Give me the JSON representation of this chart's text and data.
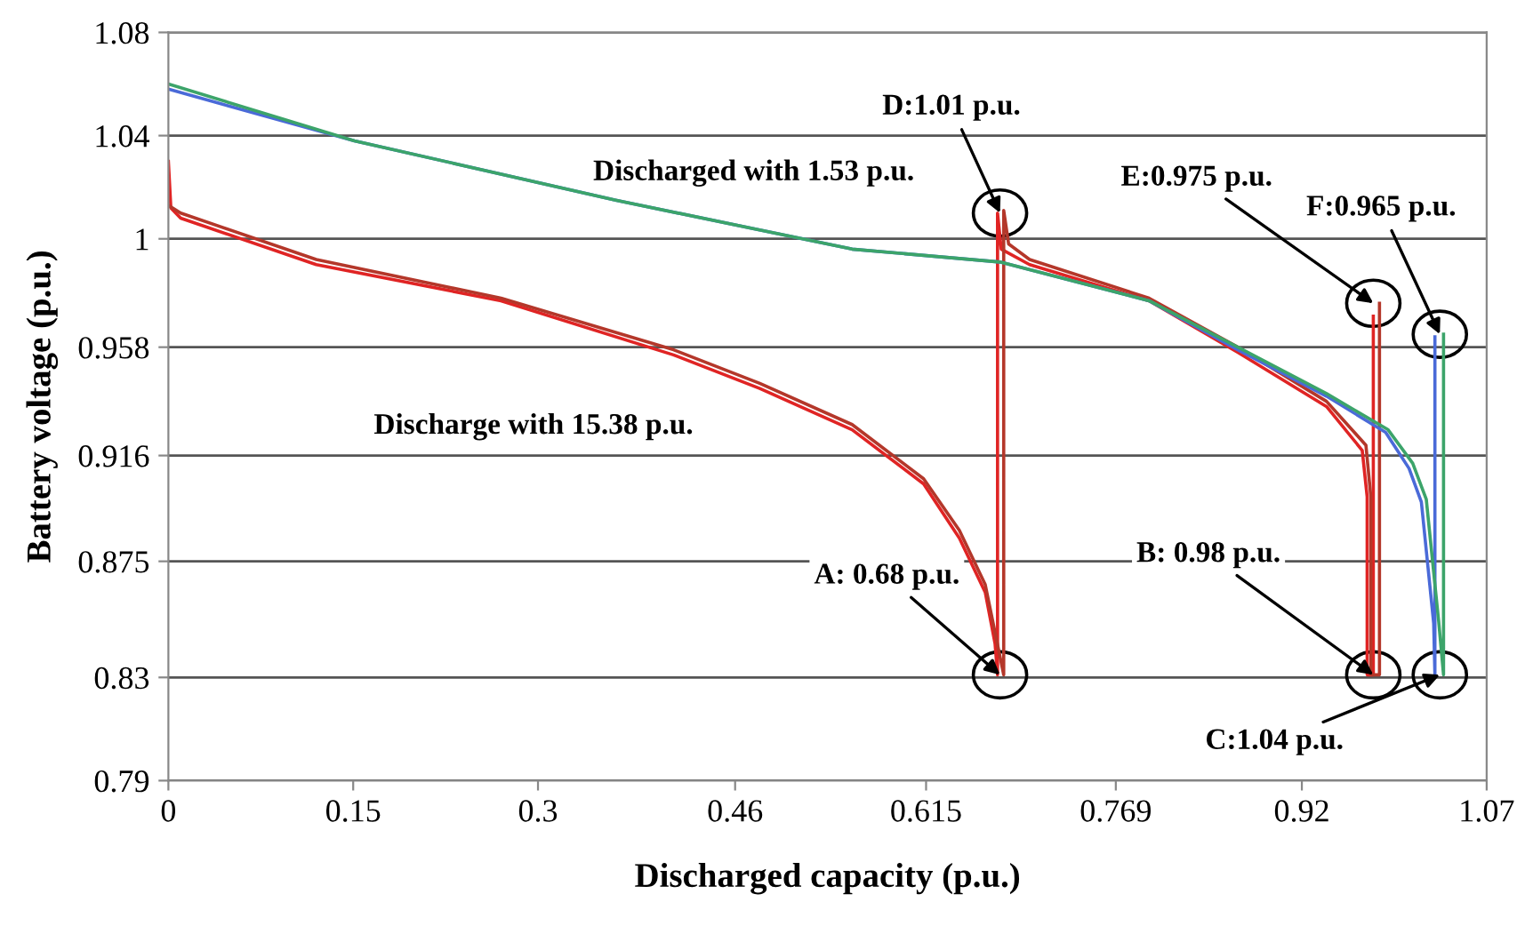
{
  "chart_data": {
    "type": "line",
    "xlabel": "Discharged capacity (p.u.)",
    "ylabel": "Battery voltage (p.u.)",
    "xlim": [
      0,
      1.07
    ],
    "ylim": [
      0.79,
      1.08
    ],
    "grid": "y",
    "xticks": [
      0,
      0.15,
      0.3,
      0.46,
      0.615,
      0.769,
      0.92,
      1.07
    ],
    "yticks": [
      0.79,
      0.83,
      0.875,
      0.916,
      0.958,
      1,
      1.04,
      1.08
    ],
    "series": [
      {
        "color": "#e02424",
        "x": [
          0,
          0.002,
          0.01,
          0.12,
          0.27,
          0.41,
          0.48,
          0.555,
          0.613,
          0.642,
          0.663,
          0.671,
          0.673,
          0.673,
          0.676,
          0.699,
          0.796,
          0.868,
          0.94,
          0.969,
          0.973,
          0.973,
          0.978,
          0.978
        ],
        "values": [
          1.03,
          1.012,
          1.008,
          0.99,
          0.976,
          0.955,
          0.942,
          0.926,
          0.905,
          0.884,
          0.863,
          0.843,
          0.831,
          1.01,
          0.996,
          0.99,
          0.976,
          0.956,
          0.935,
          0.918,
          0.9,
          0.831,
          0.831,
          0.97
        ]
      },
      {
        "color": "#b4372a",
        "x": [
          0,
          0.01,
          0.12,
          0.27,
          0.41,
          0.48,
          0.555,
          0.613,
          0.642,
          0.663,
          0.672,
          0.678,
          0.678,
          0.682,
          0.699,
          0.796,
          0.868,
          0.94,
          0.972,
          0.976,
          0.976,
          0.983,
          0.983
        ],
        "values": [
          1.013,
          1.01,
          0.992,
          0.977,
          0.957,
          0.944,
          0.928,
          0.907,
          0.887,
          0.866,
          0.845,
          0.831,
          1.011,
          0.998,
          0.992,
          0.977,
          0.958,
          0.937,
          0.92,
          0.9,
          0.831,
          0.831,
          0.975
        ]
      },
      {
        "color": "#4a6ad8",
        "x": [
          0,
          0.151,
          0.363,
          0.555,
          0.675,
          0.796,
          0.868,
          0.94,
          0.988,
          1.007,
          1.017,
          1.027,
          1.028,
          1.028
        ],
        "values": [
          1.058,
          1.038,
          1.015,
          0.996,
          0.991,
          0.976,
          0.957,
          0.939,
          0.925,
          0.911,
          0.898,
          0.851,
          0.831,
          0.962
        ]
      },
      {
        "color": "#3ca46a",
        "x": [
          0,
          0.151,
          0.363,
          0.555,
          0.675,
          0.796,
          0.868,
          0.94,
          0.99,
          1.01,
          1.021,
          1.031,
          1.035,
          1.035
        ],
        "values": [
          1.06,
          1.038,
          1.015,
          0.996,
          0.991,
          0.976,
          0.958,
          0.94,
          0.926,
          0.913,
          0.899,
          0.852,
          0.831,
          0.963
        ]
      }
    ],
    "annotations": [
      "Discharged with 1.53 p.u.",
      "Discharge with 15.38 p.u.",
      {
        "text": "D:1.01 p.u.",
        "x": 0.675,
        "y": 1.01
      },
      {
        "text": "E:0.975 p.u.",
        "x": 0.978,
        "y": 0.975
      },
      {
        "text": "F:0.965 p.u.",
        "x": 1.032,
        "y": 0.963
      },
      {
        "text": "A: 0.68 p.u.",
        "x": 0.675,
        "y": 0.831
      },
      {
        "text": "B: 0.98 p.u.",
        "x": 0.978,
        "y": 0.831
      },
      {
        "text": "C:1.04 p.u.",
        "x": 1.032,
        "y": 0.831
      }
    ]
  }
}
